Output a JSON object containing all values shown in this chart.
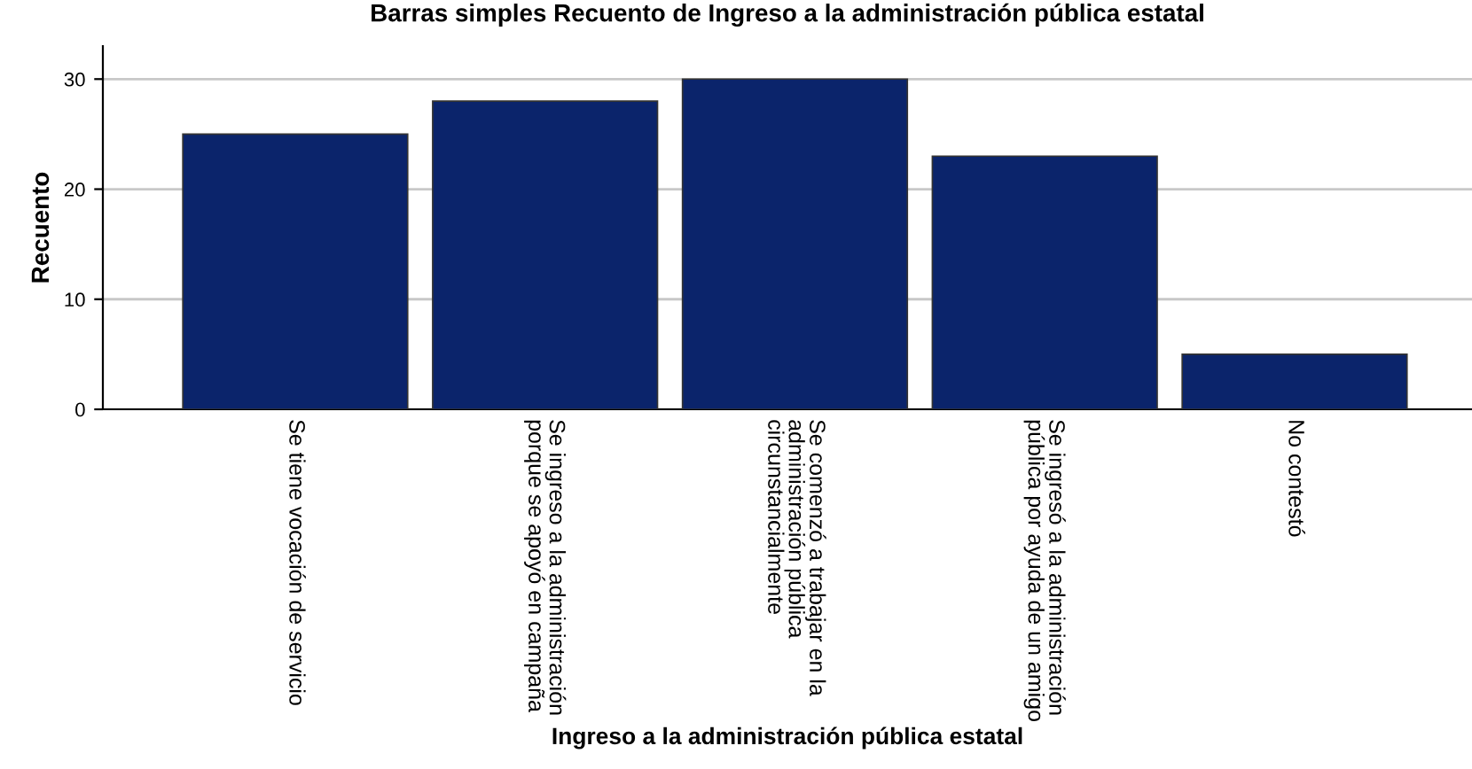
{
  "chart_data": {
    "type": "bar",
    "title": "Barras simples Recuento de Ingreso a la administración pública estatal",
    "xlabel": "Ingreso a la administración pública estatal",
    "ylabel": "Recuento",
    "categories": [
      "Se tiene vocación de servicio",
      "Se ingreso a la administración\nporque se apoyó en campaña",
      "Se comenzó a trabajar en la\nadministración pública\ncircunstancialmente",
      "Se ingresó a la administración\npública por ayuda de un amigo",
      "No contestó"
    ],
    "values": [
      25,
      28,
      30,
      23,
      5
    ],
    "color": "#0b246b",
    "ylim": [
      0,
      33
    ],
    "yticks": [
      0,
      10,
      20,
      30
    ],
    "grid": "y"
  }
}
